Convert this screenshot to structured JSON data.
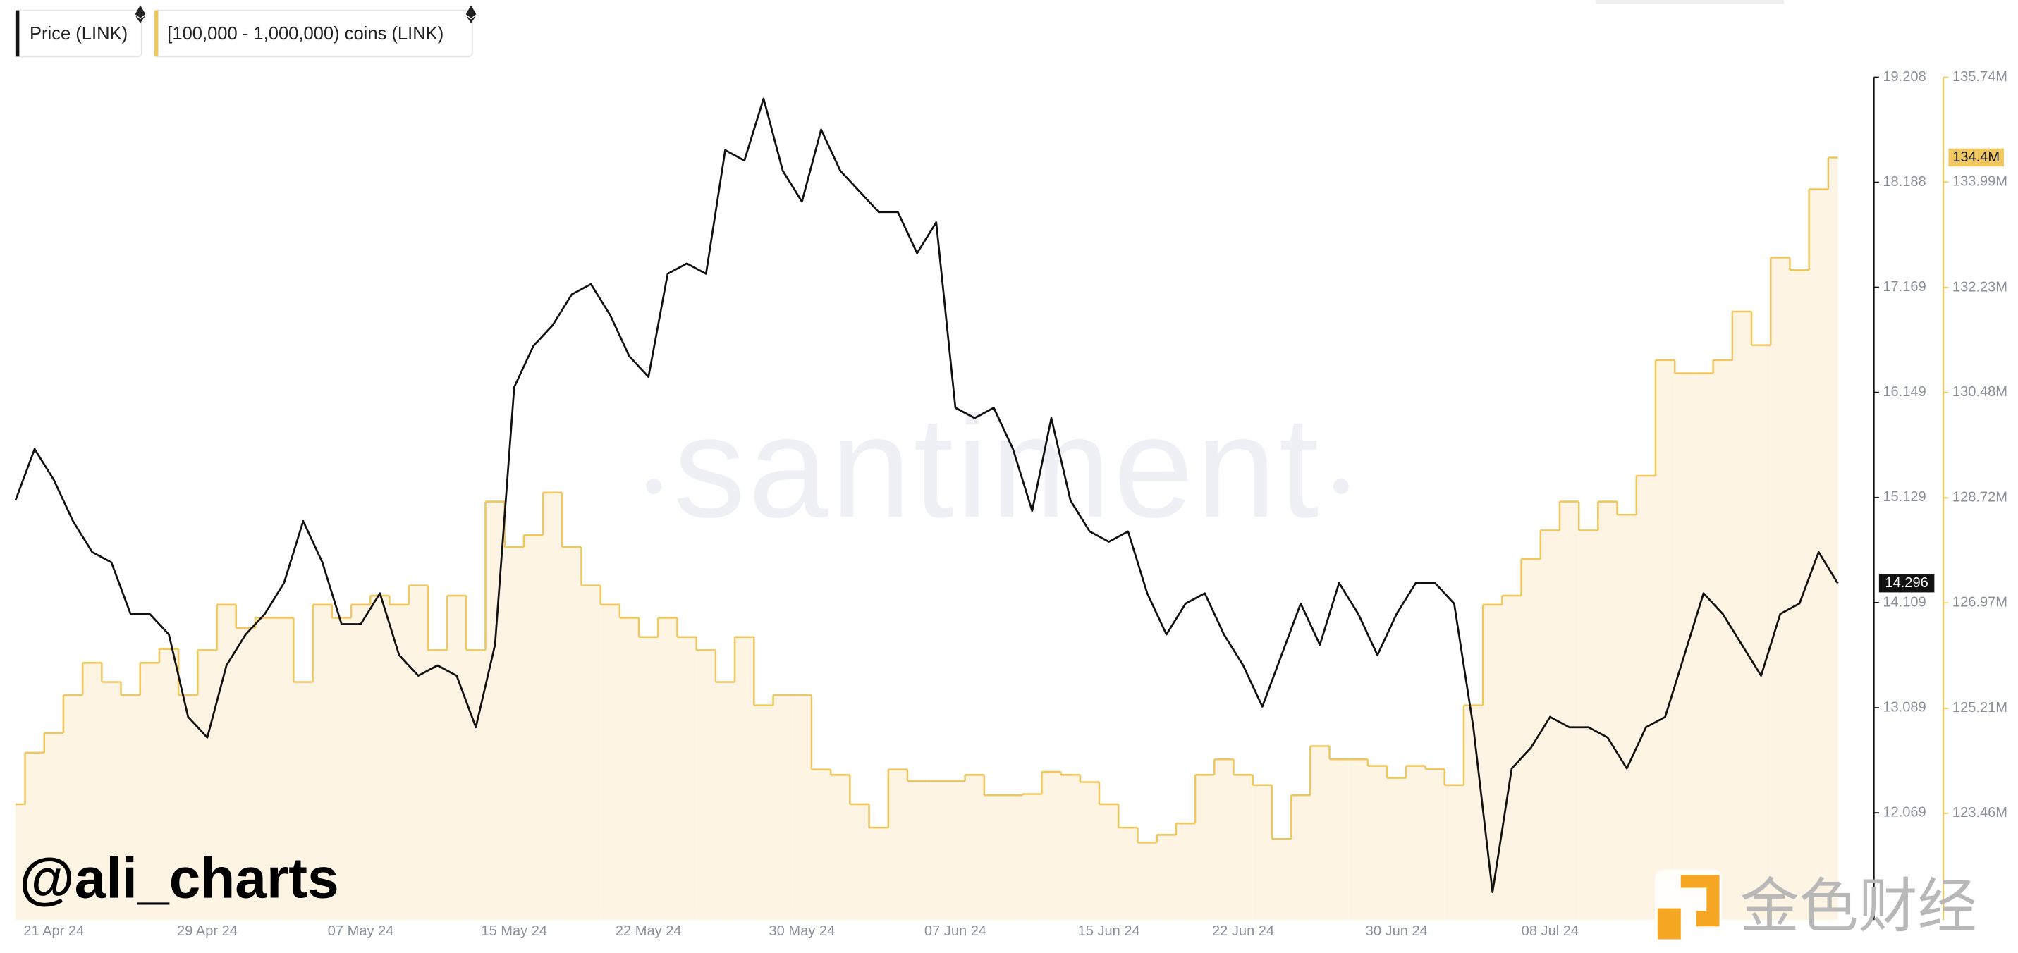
{
  "chart_data": {
    "type": "line",
    "x": [
      "19 Apr 24",
      "20 Apr 24",
      "21 Apr 24",
      "22 Apr 24",
      "23 Apr 24",
      "24 Apr 24",
      "25 Apr 24",
      "26 Apr 24",
      "27 Apr 24",
      "28 Apr 24",
      "29 Apr 24",
      "30 Apr 24",
      "01 May 24",
      "02 May 24",
      "03 May 24",
      "04 May 24",
      "05 May 24",
      "06 May 24",
      "07 May 24",
      "08 May 24",
      "09 May 24",
      "10 May 24",
      "11 May 24",
      "12 May 24",
      "13 May 24",
      "14 May 24",
      "15 May 24",
      "16 May 24",
      "17 May 24",
      "18 May 24",
      "19 May 24",
      "20 May 24",
      "21 May 24",
      "22 May 24",
      "23 May 24",
      "24 May 24",
      "25 May 24",
      "26 May 24",
      "27 May 24",
      "28 May 24",
      "29 May 24",
      "30 May 24",
      "31 May 24",
      "01 Jun 24",
      "02 Jun 24",
      "03 Jun 24",
      "04 Jun 24",
      "05 Jun 24",
      "06 Jun 24",
      "07 Jun 24",
      "08 Jun 24",
      "09 Jun 24",
      "10 Jun 24",
      "11 Jun 24",
      "12 Jun 24",
      "13 Jun 24",
      "14 Jun 24",
      "15 Jun 24",
      "16 Jun 24",
      "17 Jun 24",
      "18 Jun 24",
      "19 Jun 24",
      "20 Jun 24",
      "21 Jun 24",
      "22 Jun 24",
      "23 Jun 24",
      "24 Jun 24",
      "25 Jun 24",
      "26 Jun 24",
      "27 Jun 24",
      "28 Jun 24",
      "29 Jun 24",
      "30 Jun 24",
      "01 Jul 24",
      "02 Jul 24",
      "03 Jul 24",
      "04 Jul 24",
      "05 Jul 24",
      "06 Jul 24",
      "07 Jul 24",
      "08 Jul 24",
      "09 Jul 24",
      "10 Jul 24",
      "11 Jul 24",
      "12 Jul 24",
      "13 Jul 24",
      "14 Jul 24",
      "15 Jul 24",
      "16 Jul 24",
      "17 Jul 24",
      "18 Jul 24",
      "19 Jul 24",
      "20 Jul 24",
      "21 Jul 24",
      "22 Jul 24",
      "23 Jul 24"
    ],
    "xticks": [
      "21 Apr 24",
      "29 Apr 24",
      "07 May 24",
      "15 May 24",
      "22 May 24",
      "30 May 24",
      "07 Jun 24",
      "15 Jun 24",
      "22 Jun 24",
      "30 Jun 24",
      "08 Jul 24"
    ],
    "series": [
      {
        "name": "Price (LINK)",
        "color": "#111111",
        "axis": "y",
        "style": "line",
        "values": [
          15.1,
          15.6,
          15.3,
          14.9,
          14.6,
          14.5,
          14.0,
          14.0,
          13.8,
          13.0,
          12.8,
          13.5,
          13.8,
          14.0,
          14.3,
          14.9,
          14.5,
          13.9,
          13.9,
          14.2,
          13.6,
          13.4,
          13.5,
          13.4,
          12.9,
          13.7,
          16.2,
          16.6,
          16.8,
          17.1,
          17.2,
          16.9,
          16.5,
          16.3,
          17.3,
          17.4,
          17.3,
          18.5,
          18.4,
          19.0,
          18.3,
          18.0,
          18.7,
          18.3,
          18.1,
          17.9,
          17.9,
          17.5,
          17.8,
          16.0,
          15.9,
          16.0,
          15.6,
          15.0,
          15.9,
          15.1,
          14.8,
          14.7,
          14.8,
          14.2,
          13.8,
          14.1,
          14.2,
          13.8,
          13.5,
          13.1,
          13.6,
          14.1,
          13.7,
          14.3,
          14.0,
          13.6,
          14.0,
          14.3,
          14.3,
          14.1,
          12.9,
          11.3,
          12.5,
          12.7,
          13.0,
          12.9,
          12.9,
          12.8,
          12.5,
          12.9,
          13.0,
          13.6,
          14.2,
          14.0,
          13.7,
          13.4,
          14.0,
          14.1,
          14.6,
          14.296
        ],
        "value_labels": [
          null,
          null,
          null,
          null,
          null,
          null,
          null,
          null,
          null,
          null,
          null,
          null,
          null,
          null,
          null,
          null,
          null,
          null,
          null,
          null,
          null,
          null,
          null,
          null,
          null,
          null,
          null,
          null,
          null,
          null,
          null,
          null,
          null,
          null,
          null,
          null,
          null,
          null,
          null,
          null,
          null,
          null,
          null,
          null,
          null,
          null,
          null,
          null,
          null,
          null,
          null,
          null,
          null,
          null,
          null,
          null,
          null,
          null,
          null,
          null,
          null,
          null,
          null,
          null,
          null,
          null,
          null,
          null,
          null,
          null,
          null,
          null,
          null,
          null,
          null,
          null,
          null,
          null,
          null,
          null,
          null,
          null,
          null,
          null,
          null,
          null,
          null,
          null,
          null,
          null,
          null,
          null,
          null,
          null,
          null,
          "14.296"
        ]
      },
      {
        "name": "[100,000 - 1,000,000) coins (LINK)",
        "color": "#f0c75e",
        "fill": "#fdf4e3",
        "axis": "y2",
        "style": "step-area",
        "values": [
          123.61,
          124.47,
          124.8,
          125.43,
          125.97,
          125.65,
          125.43,
          125.97,
          126.2,
          125.43,
          126.18,
          126.94,
          126.55,
          126.72,
          126.72,
          125.65,
          126.94,
          126.72,
          126.94,
          127.09,
          126.94,
          127.26,
          126.18,
          127.09,
          126.18,
          128.66,
          127.9,
          128.1,
          128.81,
          127.9,
          127.26,
          126.94,
          126.72,
          126.4,
          126.72,
          126.4,
          126.18,
          125.65,
          126.4,
          125.26,
          125.43,
          125.43,
          124.19,
          124.1,
          123.61,
          123.22,
          124.19,
          124.0,
          124.0,
          124.0,
          124.1,
          123.76,
          123.76,
          123.78,
          124.15,
          124.1,
          123.98,
          123.61,
          123.22,
          122.97,
          123.1,
          123.29,
          124.1,
          124.36,
          124.1,
          123.93,
          123.03,
          123.76,
          124.58,
          124.36,
          124.36,
          124.25,
          124.05,
          124.25,
          124.2,
          123.93,
          125.26,
          126.94,
          127.09,
          127.7,
          128.18,
          128.66,
          128.18,
          128.66,
          128.44,
          129.09,
          131.02,
          130.8,
          130.8,
          131.02,
          131.83,
          131.27,
          132.73,
          132.52,
          133.87,
          134.4
        ],
        "value_labels": [
          null,
          null,
          null,
          null,
          null,
          null,
          null,
          null,
          null,
          null,
          null,
          null,
          null,
          null,
          null,
          null,
          null,
          null,
          null,
          null,
          null,
          null,
          null,
          null,
          null,
          null,
          null,
          null,
          null,
          null,
          null,
          null,
          null,
          null,
          null,
          null,
          null,
          null,
          null,
          null,
          null,
          null,
          null,
          null,
          null,
          null,
          null,
          null,
          null,
          null,
          null,
          null,
          null,
          null,
          null,
          null,
          null,
          null,
          null,
          null,
          null,
          null,
          null,
          null,
          null,
          null,
          null,
          null,
          null,
          null,
          null,
          null,
          null,
          null,
          null,
          null,
          null,
          null,
          null,
          null,
          null,
          null,
          null,
          null,
          null,
          null,
          null,
          null,
          null,
          null,
          null,
          null,
          null,
          null,
          null,
          "134.4M"
        ]
      }
    ],
    "ylim": [
      11.03,
      19.208
    ],
    "yticks": [
      12.069,
      13.089,
      14.109,
      15.129,
      16.149,
      17.169,
      18.188,
      19.208
    ],
    "y2lim": [
      121.68,
      135.74
    ],
    "y2ticks": [
      {
        "value": 123.46,
        "label": "123.46M"
      },
      {
        "value": 125.21,
        "label": "125.21M"
      },
      {
        "value": 126.97,
        "label": "126.97M"
      },
      {
        "value": 128.72,
        "label": "128.72M"
      },
      {
        "value": 130.48,
        "label": "130.48M"
      },
      {
        "value": 132.23,
        "label": "132.23M"
      },
      {
        "value": 133.99,
        "label": "133.99M"
      },
      {
        "value": 135.74,
        "label": "135.74M"
      }
    ],
    "grid": false,
    "legend": "top-left",
    "watermarks": [
      "santiment",
      "@ali_charts",
      "金色财经"
    ]
  }
}
